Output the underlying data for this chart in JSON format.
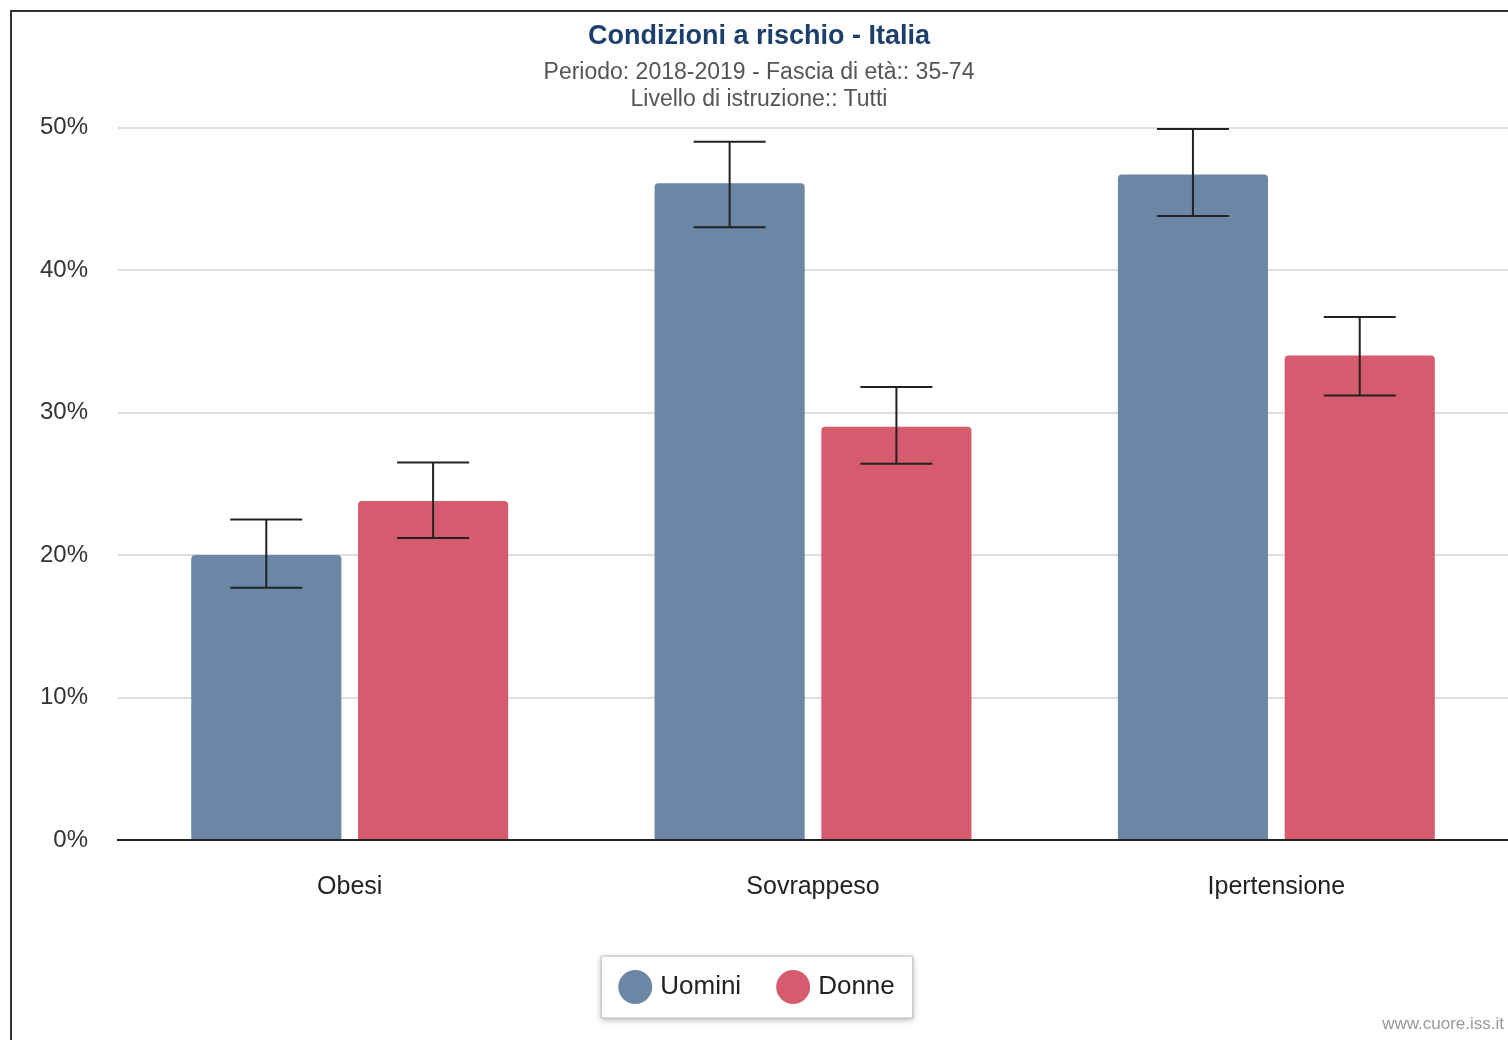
{
  "chart_data": {
    "type": "bar",
    "title": "Condizioni a rischio - Italia",
    "subtitle": "Periodo: 2018-2019 - Fascia di età:: 35-74\nLivello di istruzione:: Tutti",
    "categories": [
      "Obesi",
      "Sovrappeso",
      "Ipertensione"
    ],
    "series": [
      {
        "name": "Uomini",
        "color": "#6b87a5",
        "values": [
          20.0,
          46.1,
          46.7
        ],
        "errors": [
          [
            17.7,
            22.5
          ],
          [
            43.0,
            49.0
          ],
          [
            43.8,
            49.9
          ]
        ]
      },
      {
        "name": "Donne",
        "color": "#d65b6f",
        "values": [
          23.8,
          29.0,
          34.0
        ],
        "errors": [
          [
            21.2,
            26.5
          ],
          [
            26.4,
            31.8
          ],
          [
            31.2,
            36.7
          ]
        ]
      }
    ],
    "ylim": [
      0,
      50
    ],
    "yticks": [
      {
        "value": 0,
        "label": "0%"
      },
      {
        "value": 10,
        "label": "10%"
      },
      {
        "value": 20,
        "label": "20%"
      },
      {
        "value": 30,
        "label": "30%"
      },
      {
        "value": 40,
        "label": "40%"
      },
      {
        "value": 50,
        "label": "50%"
      }
    ],
    "grid": "y",
    "legend": "bottom",
    "marker": "circle",
    "annotations": [
      "www.cuore.iss.it"
    ]
  }
}
